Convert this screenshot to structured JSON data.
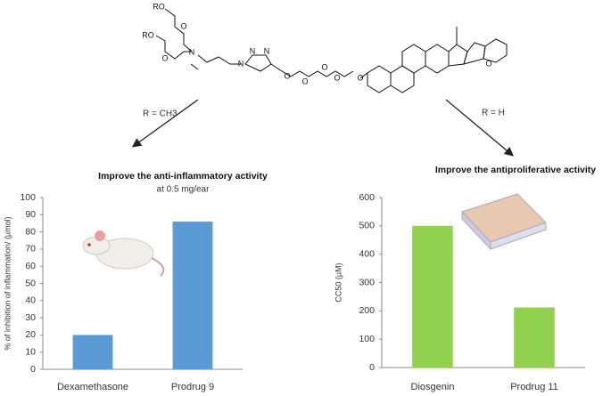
{
  "scheme": {
    "labels": [
      "RO",
      "O",
      "RO",
      "O",
      "N",
      "N",
      "N",
      "N",
      "O",
      "O",
      "O",
      "O",
      "O",
      "O"
    ],
    "arrow_left": "R = CH3",
    "arrow_right": "R = H"
  },
  "chart_data": [
    {
      "type": "bar",
      "title": "Improve the anti-inflammatory activity",
      "subtitle": "at 0.5 mg/ear",
      "y_label": "% of inhibition of inflammation/ (µmol)",
      "categories": [
        "Dexamethasone",
        "Prodrug 9"
      ],
      "values": [
        20,
        86
      ],
      "color": "#5b9bd5",
      "ylim": [
        0,
        100
      ],
      "yticks": [
        0,
        10,
        20,
        30,
        40,
        50,
        60,
        70,
        80,
        90,
        100
      ]
    },
    {
      "type": "bar",
      "title": "Improve the antiproliferative activity",
      "y_label": "CC50 (µM)",
      "categories": [
        "Diosgenin",
        "Prodrug 11"
      ],
      "values": [
        500,
        212
      ],
      "color": "#92d050",
      "ylim": [
        0,
        600
      ],
      "yticks": [
        0,
        100,
        200,
        300,
        400,
        500,
        600
      ]
    }
  ]
}
